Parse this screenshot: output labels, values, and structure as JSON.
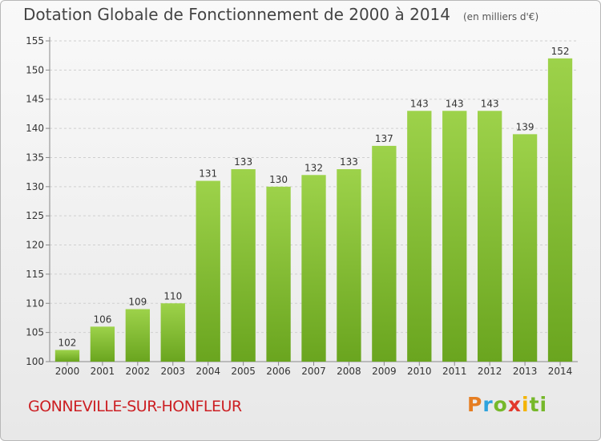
{
  "header": {
    "title": "Dotation Globale de Fonctionnement de 2000 à 2014",
    "unit": "(en milliers d'€)"
  },
  "footer": {
    "commune": "GONNEVILLE-SUR-HONFLEUR",
    "logo": [
      "P",
      "r",
      "o",
      "x",
      "i",
      "ti"
    ]
  },
  "colors": {
    "bar_light": "#9dd24a",
    "bar_dark": "#6aa51f",
    "grid": "#cfcfcf",
    "axis_text": "#333333",
    "title": "#444444",
    "commune": "#cc1f23"
  },
  "chart_data": {
    "type": "bar",
    "title": "Dotation Globale de Fonctionnement de 2000 à 2014",
    "subtitle": "(en milliers d'€)",
    "xlabel": "",
    "ylabel": "",
    "categories": [
      "2000",
      "2001",
      "2002",
      "2003",
      "2004",
      "2005",
      "2006",
      "2007",
      "2008",
      "2009",
      "2010",
      "2011",
      "2012",
      "2013",
      "2014"
    ],
    "values": [
      102,
      106,
      109,
      110,
      131,
      133,
      130,
      132,
      133,
      137,
      143,
      143,
      143,
      139,
      152
    ],
    "ylim": [
      100,
      155
    ],
    "yticks": [
      100,
      105,
      110,
      115,
      120,
      125,
      130,
      135,
      140,
      145,
      150,
      155
    ],
    "grid": true,
    "data_labels": true
  }
}
